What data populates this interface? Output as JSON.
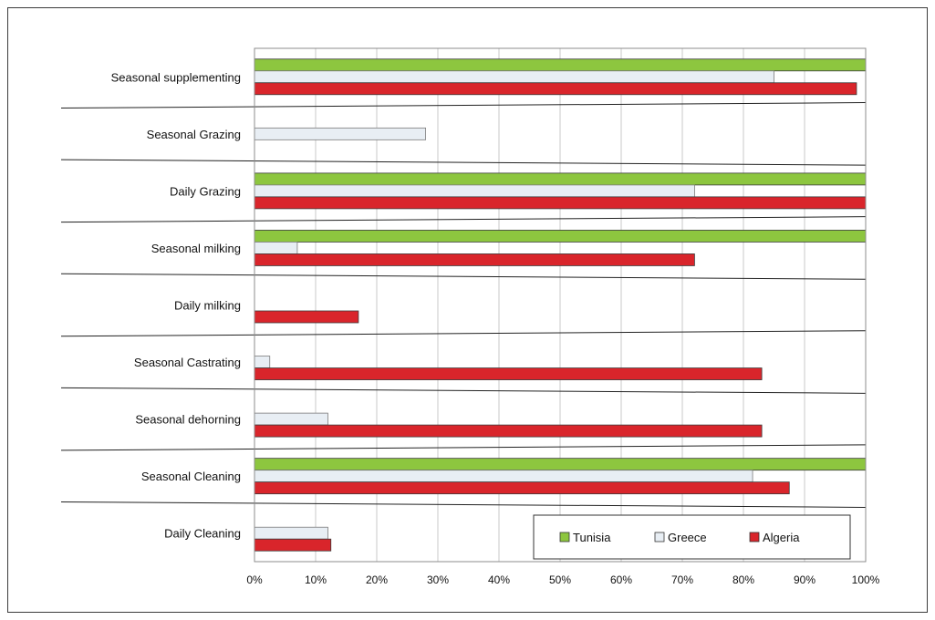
{
  "chart_data": {
    "type": "bar",
    "orientation": "horizontal",
    "title": "",
    "xlabel": "",
    "ylabel": "",
    "xlim": [
      0,
      100
    ],
    "x_ticks": [
      "0%",
      "10%",
      "20%",
      "30%",
      "40%",
      "50%",
      "60%",
      "70%",
      "80%",
      "90%",
      "100%"
    ],
    "categories": [
      "Seasonal supplementing",
      "Seasonal Grazing",
      "Daily Grazing",
      "Seasonal milking",
      "Daily milking",
      "Seasonal Castrating",
      "Seasonal dehorning",
      "Seasonal Cleaning",
      "Daily Cleaning"
    ],
    "series": [
      {
        "name": "Tunisia",
        "color": "#8dc63f",
        "values": [
          100,
          0,
          100,
          100,
          0,
          0,
          0,
          100,
          0
        ]
      },
      {
        "name": "Greece",
        "color": "#e8eef4",
        "values": [
          85,
          28,
          72,
          7,
          0,
          2.5,
          12,
          81.5,
          12
        ]
      },
      {
        "name": "Algeria",
        "color": "#d9252b",
        "values": [
          98.5,
          0,
          100,
          72,
          17,
          83,
          83,
          87.5,
          12.5
        ]
      }
    ],
    "grid": true,
    "legend_position": "bottom-right"
  }
}
